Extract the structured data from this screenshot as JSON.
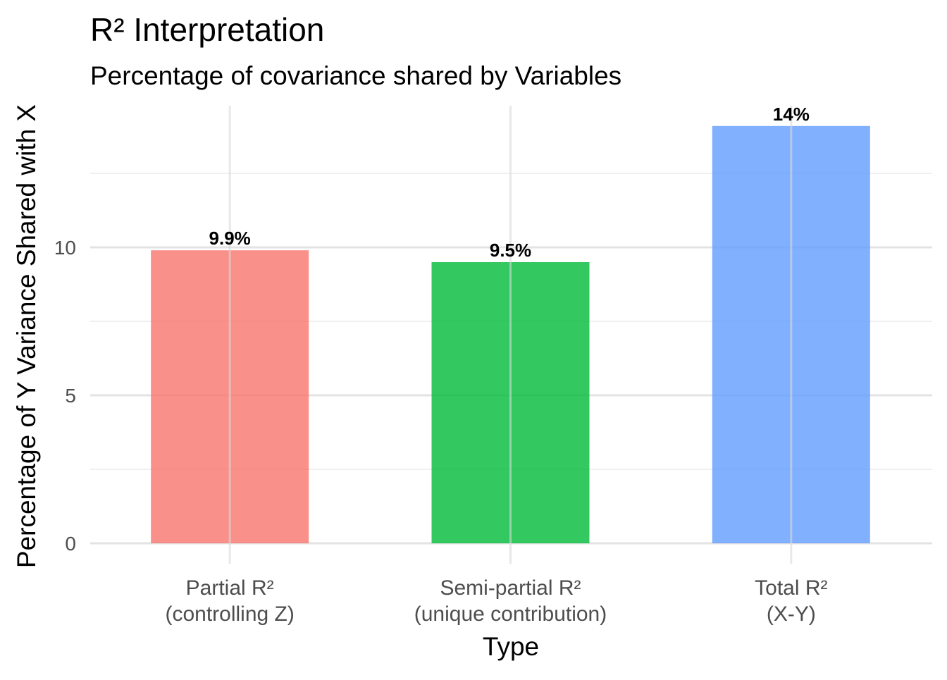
{
  "chart_data": {
    "type": "bar",
    "title": "R² Interpretation",
    "subtitle": "Percentage of covariance shared by Variables",
    "xlabel": "Type",
    "ylabel": "Percentage of Y Variance Shared with X",
    "categories": [
      [
        "Partial R²",
        "(controlling Z)"
      ],
      [
        "Semi-partial R²",
        "(unique contribution)"
      ],
      [
        "Total R²",
        "(X-Y)"
      ]
    ],
    "values": [
      9.9,
      9.5,
      14.1
    ],
    "data_labels": [
      "9.9%",
      "9.5%",
      "14%"
    ],
    "colors": [
      "#F8766D",
      "#00BA38",
      "#619CFF"
    ],
    "bar_opacity": 0.8,
    "yticks": [
      0,
      5,
      10
    ],
    "yticks_minor": [
      2.5,
      7.5,
      12.5
    ],
    "ylim": [
      0,
      14.8
    ],
    "grid": true,
    "legend": "none"
  }
}
